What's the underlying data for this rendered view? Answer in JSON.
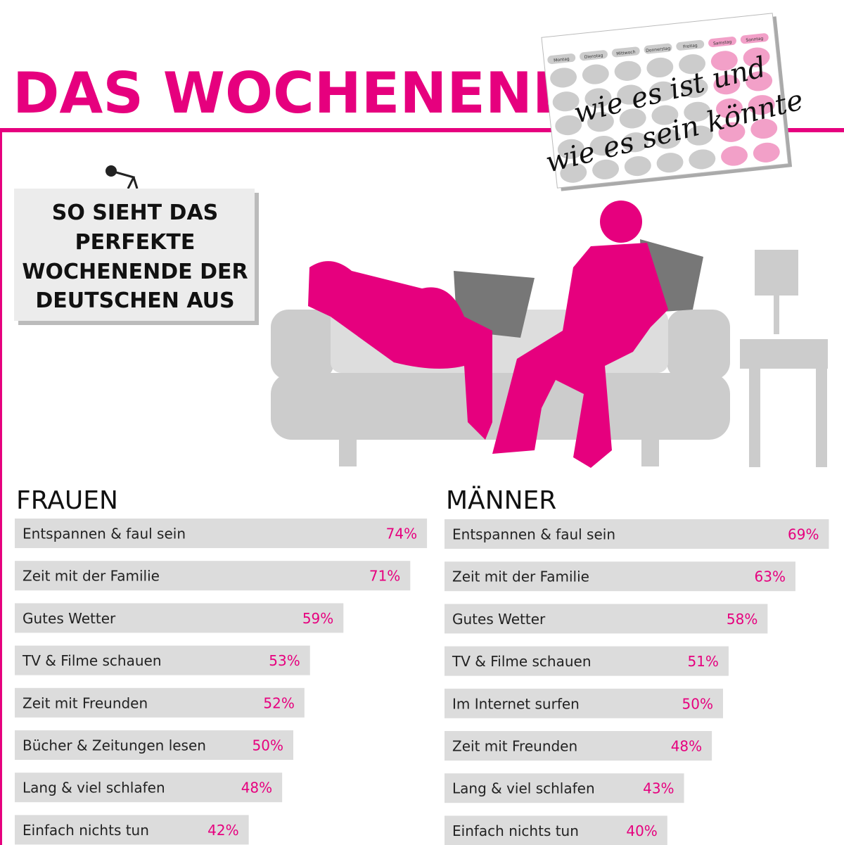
{
  "header": {
    "title": "DAS WOCHENENDE"
  },
  "calendar": {
    "days": [
      "Montag",
      "Dienstag",
      "Mittwoch",
      "Donnerstag",
      "Freitag",
      "Samstag",
      "Sonntag"
    ],
    "lines": [
      "wie es ist und",
      "wie es sein könnte"
    ]
  },
  "sign": {
    "lines": [
      "SO SIEHT DAS",
      "PERFEKTE",
      "WOCHENENDE DER",
      "DEUTSCHEN AUS"
    ]
  },
  "chart_data": [
    {
      "type": "bar",
      "orientation": "horizontal",
      "title": "FRAUEN",
      "color": "#dcdcdc",
      "label_color": "#e6007e",
      "categories": [
        "Entspannen & faul sein",
        "Zeit mit der Familie",
        "Gutes Wetter",
        "TV & Filme schauen",
        "Zeit mit Freunden",
        "Bücher & Zeitungen lesen",
        "Lang & viel schlafen",
        "Einfach nichts tun"
      ],
      "values": [
        74,
        71,
        59,
        53,
        52,
        50,
        48,
        42
      ],
      "value_labels": [
        "74%",
        "71%",
        "59%",
        "53%",
        "52%",
        "50%",
        "48%",
        "42%"
      ]
    },
    {
      "type": "bar",
      "orientation": "horizontal",
      "title": "MÄNNER",
      "color": "#dcdcdc",
      "label_color": "#e6007e",
      "categories": [
        "Entspannen & faul sein",
        "Zeit mit der Familie",
        "Gutes Wetter",
        "TV & Filme schauen",
        "Im Internet surfen",
        "Zeit mit Freunden",
        "Lang & viel schlafen",
        "Einfach nichts tun"
      ],
      "values": [
        69,
        63,
        58,
        51,
        50,
        48,
        43,
        40
      ],
      "value_labels": [
        "69%",
        "63%",
        "58%",
        "51%",
        "50%",
        "48%",
        "43%",
        "40%"
      ]
    }
  ]
}
